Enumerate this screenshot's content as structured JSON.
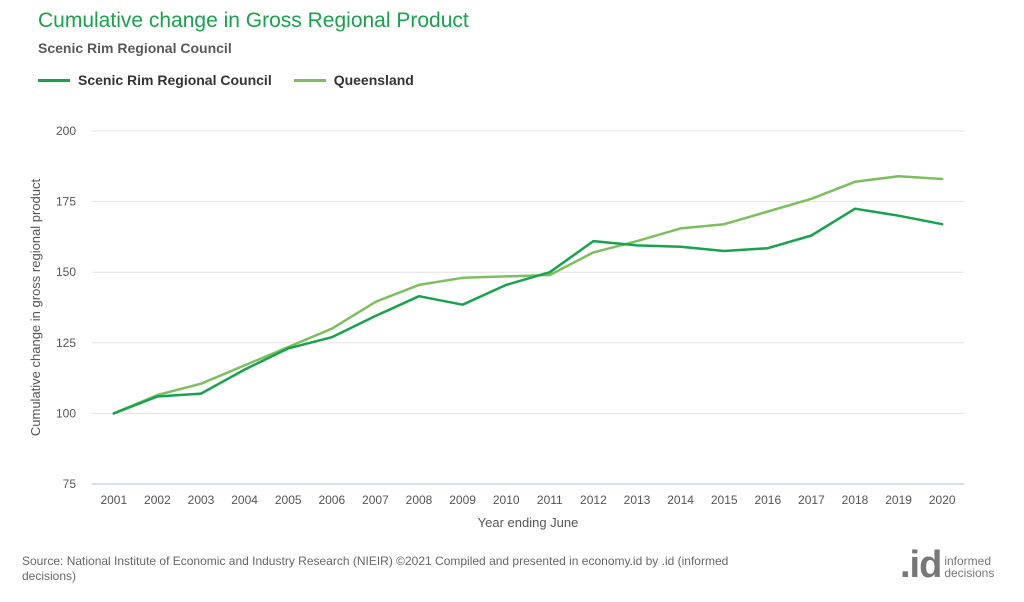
{
  "header": {
    "title": "Cumulative change in Gross Regional Product",
    "subtitle": "Scenic Rim Regional Council"
  },
  "footer": {
    "source": "Source: National Institute of Economic and Industry Research (NIEIR) ©2021 Compiled and presented in economy.id by .id (informed decisions)",
    "logo_mark": ".id",
    "logo_line1": "informed",
    "logo_line2": "decisions"
  },
  "chart_data": {
    "type": "line",
    "title": "Cumulative change in Gross Regional Product",
    "subtitle": "Scenic Rim Regional Council",
    "xlabel": "Year ending June",
    "ylabel": "Cumulative change in gross regional product",
    "ylim": [
      75,
      200
    ],
    "yticks": [
      75,
      100,
      125,
      150,
      175,
      200
    ],
    "grid": true,
    "legend_position": "top-left",
    "x": [
      "2001",
      "2002",
      "2003",
      "2004",
      "2005",
      "2006",
      "2007",
      "2008",
      "2009",
      "2010",
      "2011",
      "2012",
      "2013",
      "2014",
      "2015",
      "2016",
      "2017",
      "2018",
      "2019",
      "2020"
    ],
    "series": [
      {
        "name": "Scenic Rim Regional Council",
        "color": "#17a24d",
        "values": [
          100,
          106,
          107,
          115.5,
          123,
          127,
          134.5,
          141.5,
          138.5,
          145.5,
          150,
          161,
          159.5,
          159,
          157.5,
          158.5,
          163,
          172.5,
          170,
          167
        ]
      },
      {
        "name": "Queensland",
        "color": "#7cbf5e",
        "values": [
          100,
          106.5,
          110.5,
          117,
          123.5,
          130,
          139.5,
          145.5,
          148,
          148.5,
          149,
          157,
          161,
          165.5,
          167,
          171.5,
          176,
          182,
          184,
          183
        ]
      }
    ]
  }
}
